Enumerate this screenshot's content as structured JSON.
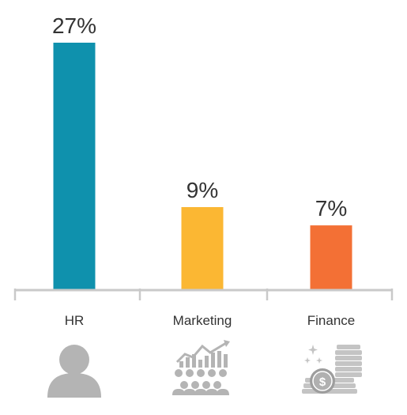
{
  "chart_data": {
    "type": "bar",
    "categories": [
      "HR",
      "Marketing",
      "Finance"
    ],
    "values": [
      27,
      9,
      7
    ],
    "value_labels": [
      "27%",
      "9%",
      "7%"
    ],
    "unit": "%",
    "colors": [
      "#0f91ad",
      "#fbb733",
      "#f37035"
    ],
    "axis_color": "#c9c9c9",
    "ylim": [
      0,
      27
    ],
    "grid": false,
    "legend": "none",
    "title": "",
    "xlabel": "",
    "ylabel": ""
  },
  "icons": [
    "person-icon",
    "growth-chart-audience-icon",
    "coin-stack-icon"
  ]
}
